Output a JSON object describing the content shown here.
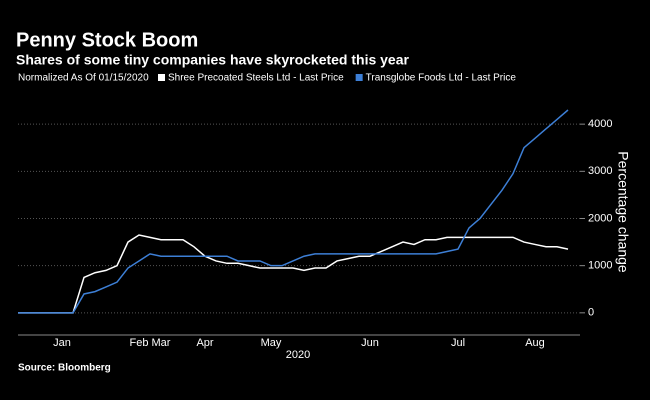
{
  "chart_data": {
    "type": "line",
    "title": "Penny Stock Boom",
    "subtitle": "Shares of some tiny companies have skyrocketed this year",
    "legend_title": "Normalized As Of 01/15/2020",
    "xlabel": "2020",
    "ylabel": "Percentage change",
    "source": "Source: Bloomberg",
    "categories": [
      null,
      null,
      null,
      null,
      "Jan",
      null,
      null,
      null,
      null,
      null,
      null,
      "Feb",
      null,
      "Mar",
      null,
      null,
      null,
      "Apr",
      null,
      null,
      null,
      null,
      null,
      "May",
      null,
      null,
      null,
      null,
      null,
      null,
      null,
      null,
      "Jun",
      null,
      null,
      null,
      null,
      null,
      null,
      null,
      "Jul",
      null,
      null,
      null,
      null,
      null,
      null,
      "Aug",
      null,
      null,
      null
    ],
    "series": [
      {
        "name": "Shree Precoated Steels Ltd - Last Price",
        "color": "#ffffff",
        "values": [
          0,
          0,
          0,
          0,
          0,
          0,
          750,
          850,
          900,
          1000,
          1500,
          1650,
          1600,
          1550,
          1550,
          1550,
          1400,
          1200,
          1100,
          1050,
          1050,
          1000,
          950,
          950,
          950,
          950,
          900,
          950,
          950,
          1100,
          1150,
          1200,
          1200,
          1300,
          1400,
          1500,
          1450,
          1550,
          1550,
          1600,
          1600,
          1600,
          1600,
          1600,
          1600,
          1600,
          1500,
          1450,
          1400,
          1400,
          1350
        ]
      },
      {
        "name": "Transglobe Foods Ltd - Last Price",
        "color": "#3d7fd6",
        "values": [
          0,
          0,
          0,
          0,
          0,
          0,
          400,
          450,
          550,
          650,
          950,
          1100,
          1250,
          1200,
          1200,
          1200,
          1200,
          1200,
          1200,
          1200,
          1100,
          1100,
          1100,
          1000,
          1000,
          1100,
          1200,
          1250,
          1250,
          1250,
          1250,
          1250,
          1250,
          1250,
          1250,
          1250,
          1250,
          1250,
          1250,
          1300,
          1350,
          1800,
          2000,
          2300,
          2600,
          2950,
          3500,
          3700,
          3900,
          4100,
          4300
        ]
      }
    ],
    "ylim": [
      -470,
      4830
    ],
    "yticks": [
      0,
      1000,
      2000,
      3000,
      4000
    ],
    "grid": true
  }
}
